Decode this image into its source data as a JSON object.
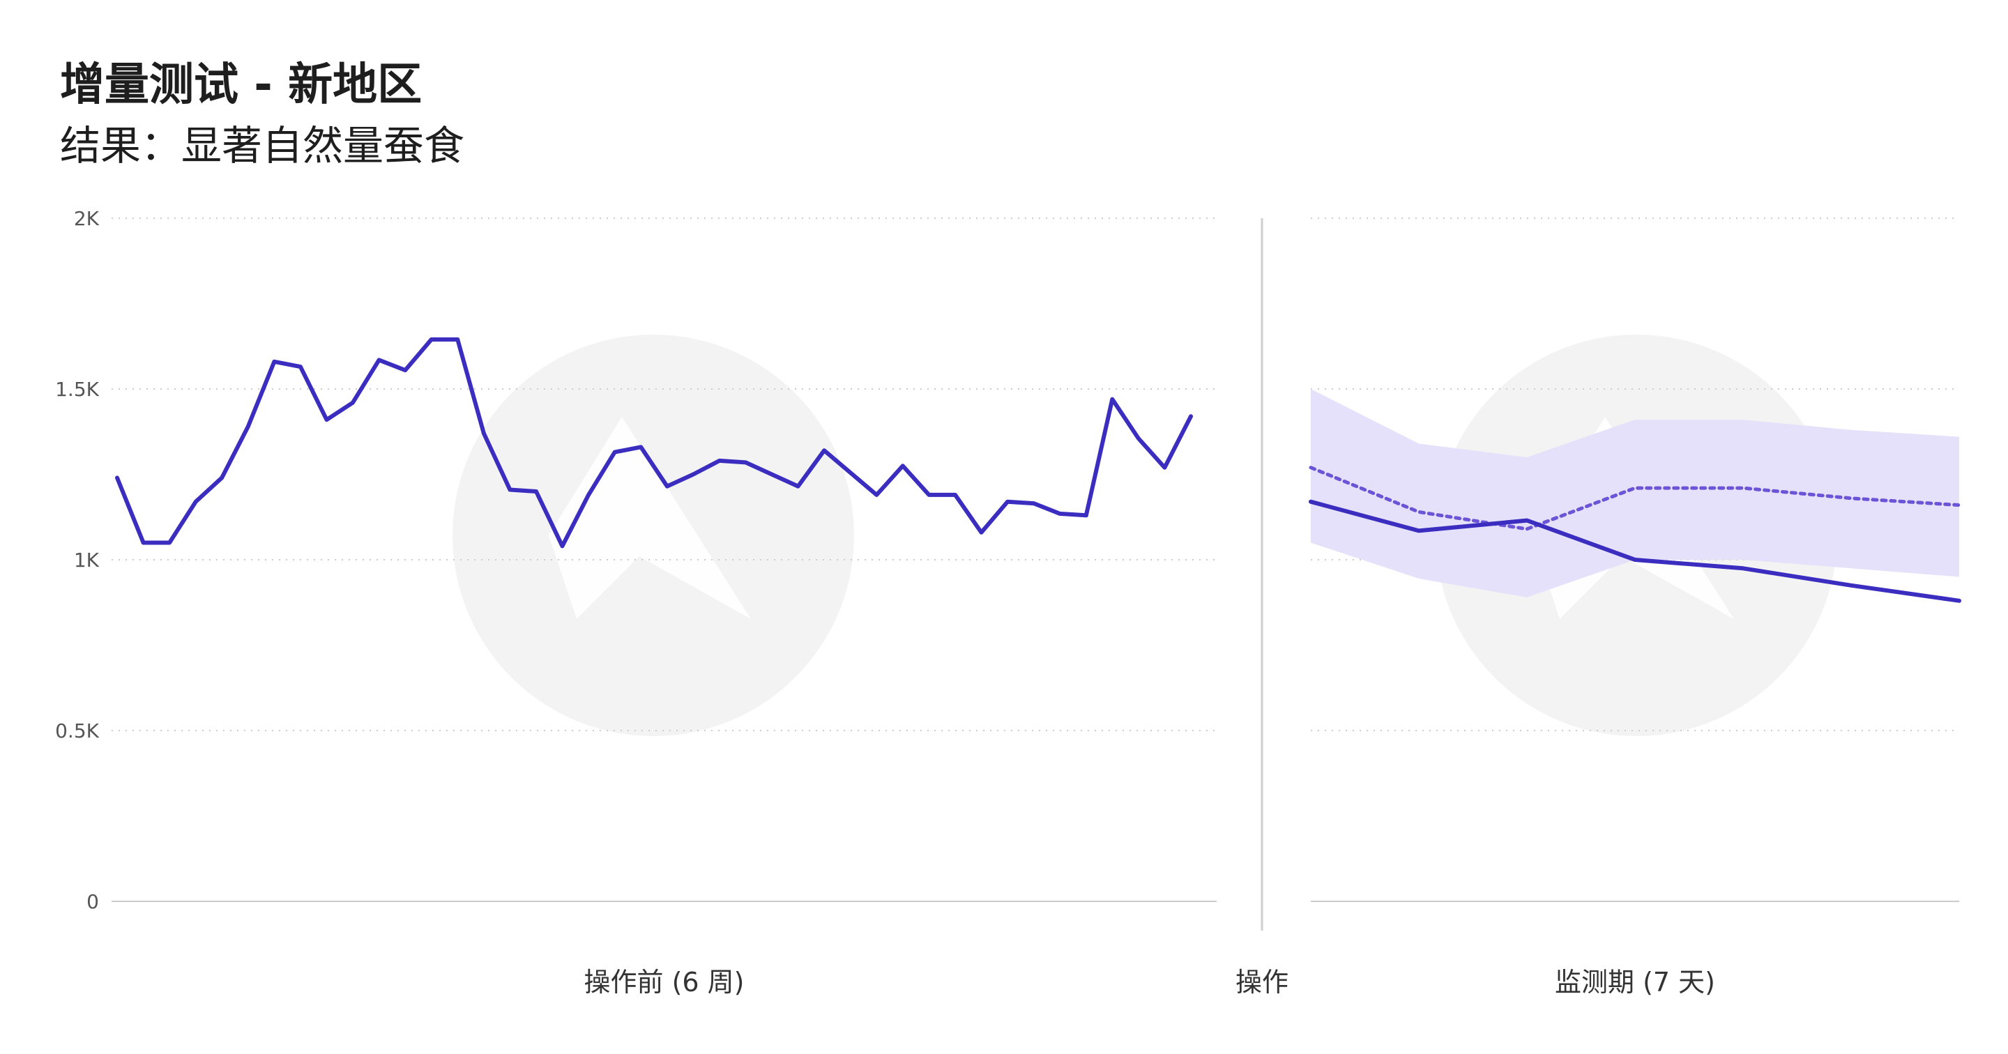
{
  "header": {
    "title": "增量测试 - 新地区",
    "subtitle": "结果：显著自然量蚕食"
  },
  "colors": {
    "line": "#3b2dbf",
    "band": "#e5e1fa",
    "forecast": "#6b55d6",
    "grid": "#cccccc",
    "axis": "#cfcfcf",
    "watermark": "#f3f3f3"
  },
  "icons": [
    "watermark-logo-icon"
  ],
  "chart_data": {
    "type": "line",
    "y_ticks": [
      "0",
      "0.5K",
      "1K",
      "1.5K",
      "2K"
    ],
    "ylim": [
      0,
      2000
    ],
    "grid": true,
    "divider_label": "操作",
    "panels": [
      {
        "xlabel": "操作前 (6 周)",
        "x": [
          1,
          2,
          3,
          4,
          5,
          6,
          7,
          8,
          9,
          10,
          11,
          12,
          13,
          14,
          15,
          16,
          17,
          18,
          19,
          20,
          21,
          22,
          23,
          24,
          25,
          26,
          27,
          28,
          29,
          30,
          31,
          32,
          33,
          34,
          35,
          36,
          37,
          38,
          39,
          40,
          41,
          42
        ],
        "series": [
          {
            "values": [
              1240,
              1050,
              1050,
              1170,
              1240,
              1390,
              1580,
              1565,
              1410,
              1460,
              1585,
              1555,
              1645,
              1645,
              1370,
              1205,
              1200,
              1040,
              1190,
              1315,
              1330,
              1215,
              1250,
              1290,
              1285,
              1250,
              1215,
              1320,
              1255,
              1190,
              1275,
              1190,
              1190,
              1080,
              1170,
              1165,
              1135,
              1130,
              1470,
              1355,
              1270,
              1420
            ]
          }
        ]
      },
      {
        "xlabel": "监测期 (7 天)",
        "x": [
          1,
          2,
          3,
          4,
          5,
          6,
          7
        ],
        "series": [
          {
            "role": "actual",
            "values": [
              1170,
              1085,
              1115,
              1000,
              975,
              925,
              880
            ]
          },
          {
            "role": "expected",
            "values": [
              1270,
              1140,
              1090,
              1210,
              1210,
              1180,
              1160
            ]
          }
        ],
        "band": {
          "upper": [
            1500,
            1340,
            1300,
            1410,
            1410,
            1380,
            1360
          ],
          "lower": [
            1050,
            945,
            890,
            1000,
            1000,
            975,
            950
          ]
        }
      }
    ]
  }
}
